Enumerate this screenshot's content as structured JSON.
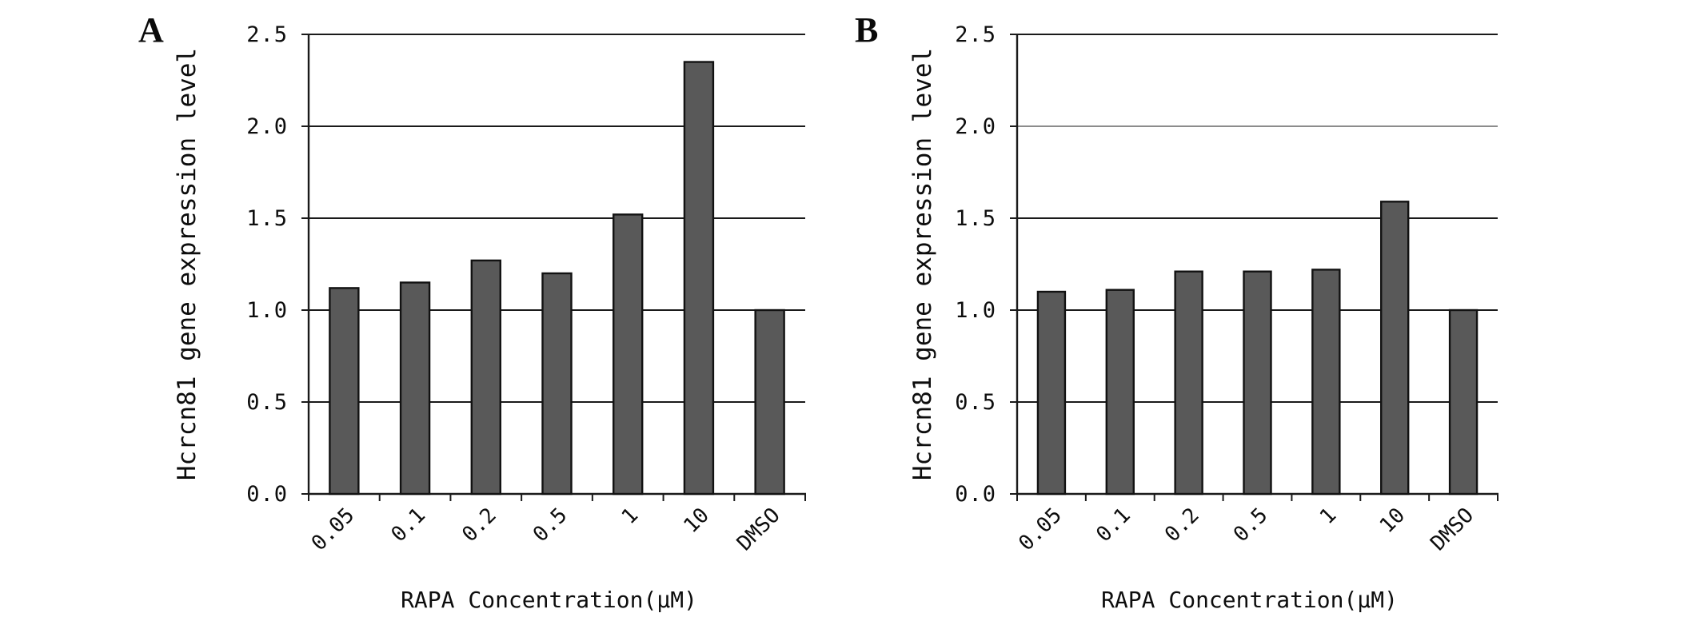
{
  "figure": {
    "panel_a_label": "A",
    "panel_b_label": "B"
  },
  "chart_data": [
    {
      "type": "bar",
      "panel": "A",
      "categories": [
        "0.05",
        "0.1",
        "0.2",
        "0.5",
        "1",
        "10",
        "DMSO"
      ],
      "values": [
        1.12,
        1.15,
        1.27,
        1.2,
        1.52,
        2.35,
        1.0
      ],
      "title": "",
      "xlabel": "RAPA Concentration(μM)",
      "ylabel": "Hcrcn81 gene expression level",
      "ylim": [
        0,
        2.5
      ],
      "yticks": [
        0,
        0.5,
        1.0,
        1.5,
        2.0,
        2.5
      ],
      "ytick_labels": [
        "0.0",
        "0.5",
        "1.0",
        "1.5",
        "2.0",
        "2.5"
      ],
      "grid": true,
      "legend_position": "none",
      "bar_color": "#595959",
      "bar_border_color": "#121212",
      "axis_color": "#1a1a1a"
    },
    {
      "type": "bar",
      "panel": "B",
      "categories": [
        "0.05",
        "0.1",
        "0.2",
        "0.5",
        "1",
        "10",
        "DMSO"
      ],
      "values": [
        1.1,
        1.11,
        1.21,
        1.21,
        1.22,
        1.59,
        1.0
      ],
      "title": "",
      "xlabel": "RAPA Concentration(μM)",
      "ylabel": "Hcrcn81 gene expression level",
      "ylim": [
        0,
        2.5
      ],
      "yticks": [
        0,
        0.5,
        1.0,
        1.5,
        2.0,
        2.5
      ],
      "ytick_labels": [
        "0.0",
        "0.5",
        "1.0",
        "1.5",
        "2.0",
        "2.5"
      ],
      "grid": true,
      "legend_position": "none",
      "bar_color": "#595959",
      "bar_border_color": "#121212",
      "axis_color": "#1a1a1a",
      "special_gridline": {
        "value": 2.0,
        "color": "#8c8c8c"
      }
    }
  ]
}
